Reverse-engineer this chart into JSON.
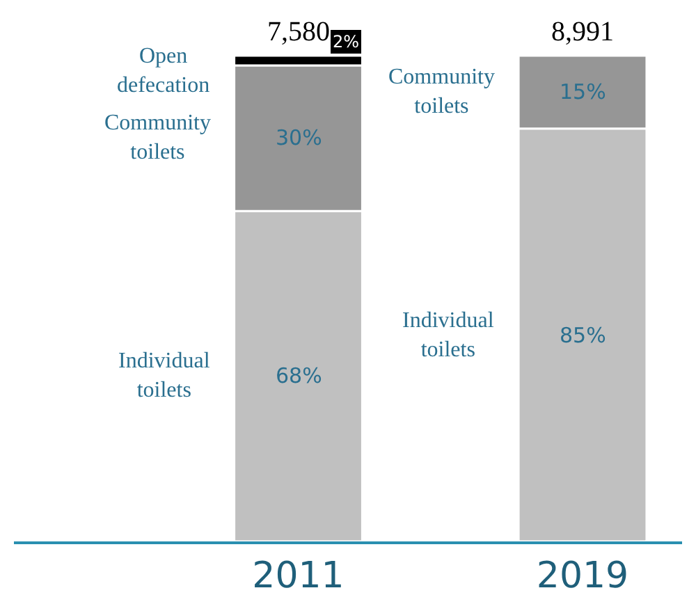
{
  "chart_data": {
    "type": "bar",
    "stacked": true,
    "categories": [
      "2011",
      "2019"
    ],
    "series": [
      {
        "name": "Individual toilets",
        "color": "#c0c0c0",
        "values": [
          68,
          85
        ],
        "value_labels": [
          "68%",
          "85%"
        ]
      },
      {
        "name": "Community toilets",
        "color": "#969696",
        "values": [
          30,
          15
        ],
        "value_labels": [
          "30%",
          "15%"
        ]
      },
      {
        "name": "Open defecation",
        "color": "#000000",
        "values": [
          2,
          null
        ],
        "value_labels": [
          "2%",
          null
        ]
      }
    ],
    "annotations": [
      {
        "text": "7,580",
        "x": "2011",
        "y": 100
      },
      {
        "text": "8,991",
        "x": "2019",
        "y": 100
      }
    ],
    "legend": false
  }
}
